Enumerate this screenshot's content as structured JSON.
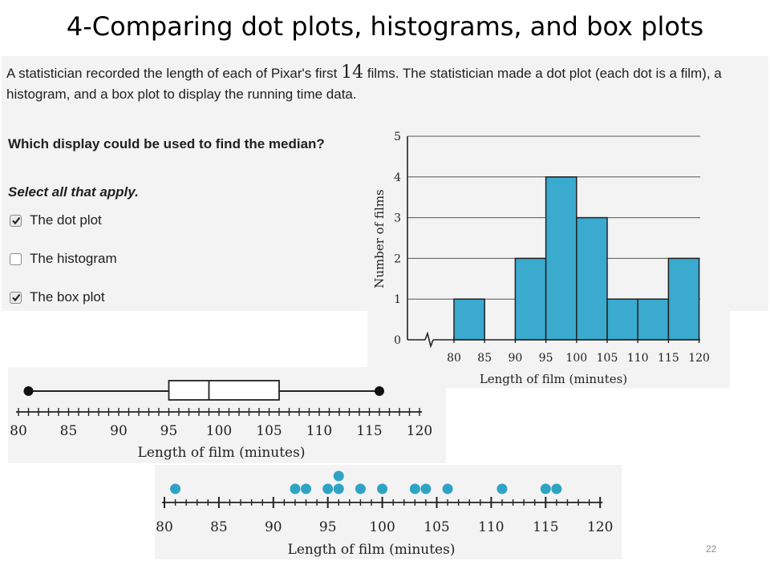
{
  "slide": {
    "title": "4-Comparing dot plots, histograms, and box plots",
    "page_number": "22"
  },
  "problem": {
    "text_before": "A statistician recorded the length of each of Pixar's first ",
    "count": "14",
    "text_after": " films. The statistician made a dot plot (each dot is a film), a histogram, and a box plot to display the running time data.",
    "question": "Which display could be used to find the median?",
    "instruction": "Select all that apply.",
    "options": [
      {
        "label": "The dot plot",
        "checked": true
      },
      {
        "label": "The histogram",
        "checked": false
      },
      {
        "label": "The box plot",
        "checked": true
      }
    ]
  },
  "colors": {
    "bar_fill": "#3aaacf",
    "dot_fill": "#2fa3c4",
    "panel_bg": "#f3f3f3"
  },
  "chart_data": [
    {
      "type": "histogram",
      "bins": [
        [
          80,
          85
        ],
        [
          85,
          90
        ],
        [
          90,
          95
        ],
        [
          95,
          100
        ],
        [
          100,
          105
        ],
        [
          105,
          110
        ],
        [
          110,
          115
        ],
        [
          115,
          120
        ]
      ],
      "values": [
        1,
        0,
        2,
        4,
        3,
        1,
        1,
        2
      ],
      "x_ticks": [
        "80",
        "85",
        "90",
        "95",
        "100",
        "105",
        "110",
        "115",
        "120"
      ],
      "y_ticks": [
        "0",
        "1",
        "2",
        "3",
        "4",
        "5"
      ],
      "xlabel": "Length of film (minutes)",
      "ylabel": "Number of films",
      "xlim": [
        80,
        120
      ],
      "ylim": [
        0,
        5
      ],
      "axis_break": true,
      "grid": "horizontal"
    },
    {
      "type": "box",
      "min": 81,
      "q1": 95,
      "median": 99,
      "q3": 106,
      "max": 116,
      "x_ticks": [
        "80",
        "85",
        "90",
        "95",
        "100",
        "105",
        "110",
        "115",
        "120"
      ],
      "xlim": [
        80,
        120
      ],
      "xlabel": "Length of film (minutes)"
    },
    {
      "type": "scatter",
      "subtype": "dot_plot",
      "points": [
        {
          "x": 81,
          "count": 1
        },
        {
          "x": 92,
          "count": 1
        },
        {
          "x": 93,
          "count": 1
        },
        {
          "x": 95,
          "count": 1
        },
        {
          "x": 96,
          "count": 2
        },
        {
          "x": 98,
          "count": 1
        },
        {
          "x": 100,
          "count": 1
        },
        {
          "x": 103,
          "count": 1
        },
        {
          "x": 104,
          "count": 1
        },
        {
          "x": 106,
          "count": 1
        },
        {
          "x": 111,
          "count": 1
        },
        {
          "x": 115,
          "count": 1
        },
        {
          "x": 116,
          "count": 1
        }
      ],
      "x_ticks": [
        "80",
        "85",
        "90",
        "95",
        "100",
        "105",
        "110",
        "115",
        "120"
      ],
      "xlim": [
        80,
        120
      ],
      "xlabel": "Length of film (minutes)"
    }
  ]
}
